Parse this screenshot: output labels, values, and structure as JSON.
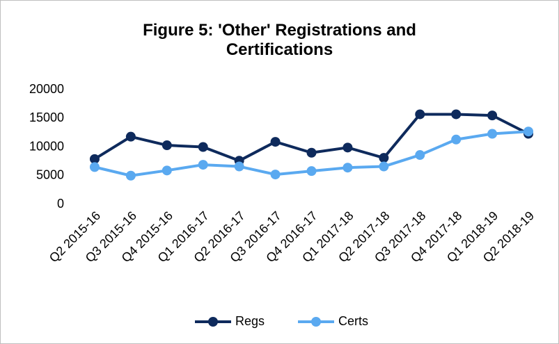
{
  "chart_data": {
    "type": "line",
    "title": "Figure 5: 'Other' Registrations and Certifications",
    "categories": [
      "Q2 2015-16",
      "Q3 2015-16",
      "Q4 2015-16",
      "Q1 2016-17",
      "Q2 2016-17",
      "Q3 2016-17",
      "Q4 2016-17",
      "Q1 2017-18",
      "Q2 2017-18",
      "Q3 2017-18",
      "Q4 2017-18",
      "Q1 2018-19",
      "Q2 2018-19"
    ],
    "series": [
      {
        "name": "Regs",
        "color": "#0e2a5c",
        "values": [
          7900,
          11800,
          10300,
          10000,
          7600,
          10900,
          9000,
          9900,
          8100,
          15700,
          15700,
          15500,
          12300
        ]
      },
      {
        "name": "Certs",
        "color": "#5aa9f0",
        "values": [
          6500,
          5000,
          5900,
          6900,
          6600,
          5200,
          5800,
          6400,
          6600,
          8600,
          11300,
          12300,
          12700
        ]
      }
    ],
    "ylim": [
      0,
      20000
    ],
    "yticks": [
      0,
      5000,
      10000,
      15000,
      20000
    ],
    "grid": false,
    "legend": "bottom"
  }
}
